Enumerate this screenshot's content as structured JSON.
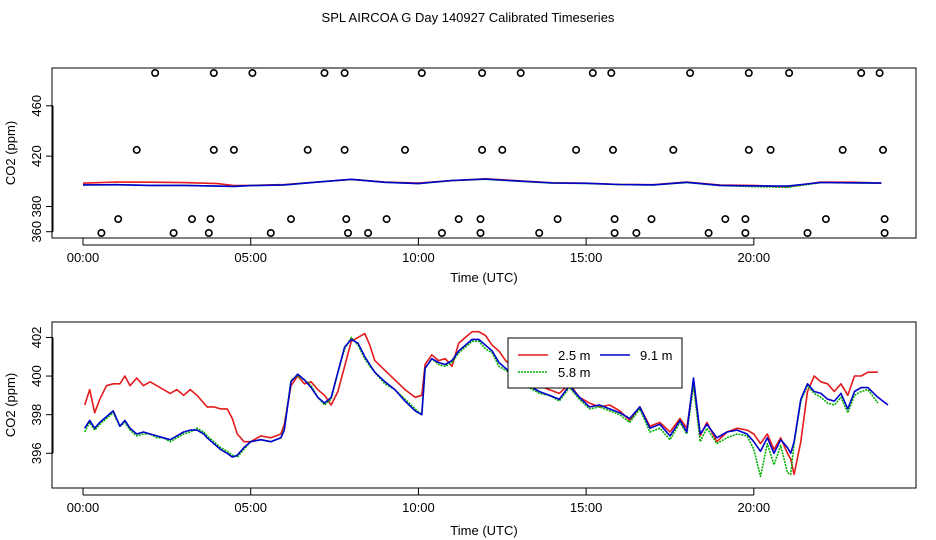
{
  "title": "SPL AIRCOA G  Day 140927  Calibrated Timeseries",
  "colors": {
    "s1": "#e41a1c",
    "s2": "#00b000",
    "s3": "#0000cc",
    "axis": "#000000"
  },
  "chart_data": [
    {
      "type": "scatter+line",
      "xlabel": "Time (UTC)",
      "ylabel": "CO2 (ppm)",
      "xlim": [
        0,
        24
      ],
      "ylim": [
        355,
        490
      ],
      "xticks": [
        0,
        5,
        10,
        15,
        20
      ],
      "xtick_labels": [
        "00:00",
        "05:00",
        "10:00",
        "15:00",
        "20:00"
      ],
      "yticks": [
        360,
        380,
        420,
        460
      ],
      "ytick_labels": [
        "360",
        "380",
        "420",
        "460"
      ],
      "markers": {
        "symbol": "circle",
        "x": [
          2.15,
          3.9,
          5.05,
          7.2,
          7.8,
          10.1,
          11.9,
          13.05,
          15.2,
          15.75,
          18.1,
          19.85,
          21.05,
          23.2,
          23.75,
          1.6,
          3.9,
          4.5,
          6.7,
          7.8,
          9.6,
          11.9,
          12.5,
          14.7,
          15.8,
          17.6,
          19.85,
          20.5,
          22.65,
          23.85,
          1.05,
          3.25,
          3.8,
          6.2,
          7.85,
          9.05,
          11.2,
          11.85,
          14.15,
          15.85,
          16.95,
          19.15,
          19.75,
          22.15,
          23.9,
          0.55,
          2.7,
          3.75,
          5.6,
          7.9,
          8.5,
          10.7,
          11.85,
          13.6,
          15.85,
          16.5,
          18.65,
          19.75,
          21.6,
          23.9
        ],
        "y": [
          486,
          486,
          486,
          486,
          486,
          486,
          486,
          486,
          486,
          486,
          486,
          486,
          486,
          486,
          486,
          425,
          425,
          425,
          425,
          425,
          425,
          425,
          425,
          425,
          425,
          425,
          425,
          425,
          425,
          425,
          370,
          370,
          370,
          370,
          370,
          370,
          370,
          370,
          370,
          370,
          370,
          370,
          370,
          370,
          370,
          359,
          359,
          359,
          359,
          359,
          359,
          359,
          359,
          359,
          359,
          359,
          359,
          359,
          359,
          359
        ]
      },
      "series": [
        {
          "name": "2.5 m",
          "x": [
            0,
            1,
            2,
            3,
            4,
            4.5,
            5,
            6,
            7,
            8,
            9,
            10,
            11,
            12,
            13,
            14,
            15,
            16,
            17,
            18,
            19,
            20,
            21,
            22,
            23,
            23.8
          ],
          "values": [
            398.5,
            399.5,
            399.3,
            399,
            398.2,
            396.7,
            396.8,
            397.5,
            399.5,
            401.5,
            399.5,
            398.6,
            400.6,
            402,
            400.4,
            398.8,
            398.5,
            397.5,
            397.3,
            399.5,
            397,
            396.8,
            395.6,
            399.5,
            399.2,
            398.6
          ]
        },
        {
          "name": "5.8 m",
          "x": [
            0,
            1,
            2,
            3,
            4,
            4.5,
            5,
            6,
            7,
            8,
            9,
            10,
            11,
            12,
            13,
            14,
            15,
            16,
            17,
            18,
            19,
            20,
            21,
            22,
            23,
            23.8
          ],
          "values": [
            397.2,
            397.3,
            396.8,
            396.8,
            396.2,
            396,
            396.6,
            397.2,
            399.5,
            401.5,
            399.2,
            398.2,
            400.6,
            401.6,
            400,
            398.6,
            398.3,
            397.4,
            397.1,
            399,
            396.6,
            395.8,
            395.3,
            399,
            398.7,
            398.5
          ]
        },
        {
          "name": "9.1 m",
          "x": [
            0,
            1,
            2,
            3,
            4,
            4.5,
            5,
            6,
            7,
            8,
            9,
            10,
            11,
            12,
            13,
            14,
            15,
            16,
            17,
            18,
            19,
            20,
            21,
            22,
            23,
            23.8
          ],
          "values": [
            397.2,
            397.3,
            396.8,
            396.8,
            396.2,
            396,
            396.6,
            397.2,
            399.4,
            401.6,
            399.2,
            398.2,
            400.7,
            401.8,
            400.2,
            398.7,
            398.4,
            397.5,
            397.2,
            399.2,
            396.8,
            396.4,
            396.2,
            399.1,
            398.8,
            398.6
          ]
        }
      ]
    },
    {
      "type": "line",
      "xlabel": "Time (UTC)",
      "ylabel": "CO2 (ppm)",
      "xlim": [
        0,
        24
      ],
      "ylim": [
        394.2,
        402.8
      ],
      "xticks": [
        0,
        5,
        10,
        15,
        20
      ],
      "xtick_labels": [
        "00:00",
        "05:00",
        "10:00",
        "15:00",
        "20:00"
      ],
      "yticks": [
        396,
        398,
        400,
        402
      ],
      "ytick_labels": [
        "396",
        "398",
        "400",
        "402"
      ],
      "legend": {
        "position": "top-center",
        "labels": [
          "2.5 m",
          "5.8 m",
          "9.1 m"
        ]
      },
      "series": [
        {
          "name": "2.5 m",
          "x": [
            0.05,
            0.2,
            0.35,
            0.5,
            0.7,
            0.9,
            1.1,
            1.25,
            1.4,
            1.6,
            1.8,
            2.0,
            2.2,
            2.4,
            2.6,
            2.8,
            3.0,
            3.2,
            3.4,
            3.6,
            3.7,
            3.9,
            4.1,
            4.3,
            4.45,
            4.6,
            4.8,
            5.0,
            5.3,
            5.6,
            5.9,
            6.0,
            6.2,
            6.4,
            6.6,
            6.8,
            7.0,
            7.2,
            7.4,
            7.6,
            7.8,
            8.0,
            8.2,
            8.4,
            8.55,
            8.7,
            9.0,
            9.3,
            9.6,
            9.9,
            10.1,
            10.2,
            10.4,
            10.6,
            10.8,
            11.0,
            11.2,
            11.4,
            11.6,
            11.8,
            12.0,
            12.2,
            12.4,
            12.6,
            12.8,
            13.0,
            13.3,
            13.6,
            13.9,
            14.2,
            14.5,
            14.8,
            15.1,
            15.4,
            15.7,
            16.0,
            16.3,
            16.6,
            16.9,
            17.2,
            17.5,
            17.8,
            18.0,
            18.2,
            18.4,
            18.6,
            18.9,
            19.2,
            19.5,
            19.8,
            20.0,
            20.2,
            20.4,
            20.6,
            20.8,
            21.0,
            21.1,
            21.2,
            21.4,
            21.6,
            21.8,
            22.0,
            22.2,
            22.4,
            22.6,
            22.8,
            23.0,
            23.2,
            23.4,
            23.7
          ],
          "values": [
            398.5,
            399.3,
            398.1,
            398.8,
            399.5,
            399.6,
            399.6,
            400.0,
            399.5,
            399.9,
            399.5,
            399.7,
            399.5,
            399.3,
            399.1,
            399.3,
            399.0,
            399.3,
            399.0,
            398.6,
            398.4,
            398.4,
            398.3,
            398.3,
            397.8,
            397.0,
            396.6,
            396.6,
            396.9,
            396.8,
            397.0,
            397.5,
            399.5,
            400.0,
            399.6,
            399.7,
            399.3,
            399.0,
            398.5,
            399.2,
            400.5,
            401.8,
            402.0,
            402.2,
            401.6,
            400.8,
            400.3,
            399.8,
            399.3,
            398.9,
            399.0,
            400.6,
            401.1,
            400.8,
            400.9,
            400.5,
            401.7,
            402.0,
            402.3,
            402.3,
            402.1,
            401.6,
            401.3,
            400.8,
            400.5,
            400.3,
            399.9,
            399.5,
            399.3,
            399.1,
            399.6,
            398.9,
            398.6,
            398.4,
            398.5,
            398.2,
            397.7,
            398.4,
            397.4,
            397.6,
            397.1,
            397.8,
            397.3,
            399.7,
            396.9,
            397.6,
            396.6,
            397.1,
            397.3,
            397.2,
            397.0,
            396.5,
            397.0,
            396.2,
            396.8,
            396.0,
            395.7,
            394.9,
            396.6,
            399.2,
            400.0,
            399.7,
            399.6,
            399.2,
            399.6,
            399.0,
            400.0,
            400.0,
            400.2,
            400.2
          ]
        },
        {
          "name": "5.8 m",
          "x": [
            0.05,
            0.2,
            0.35,
            0.5,
            0.7,
            0.9,
            1.1,
            1.25,
            1.4,
            1.6,
            1.8,
            2.0,
            2.2,
            2.4,
            2.6,
            2.8,
            3.0,
            3.2,
            3.4,
            3.6,
            3.7,
            3.9,
            4.1,
            4.3,
            4.45,
            4.6,
            4.8,
            5.0,
            5.3,
            5.6,
            5.9,
            6.0,
            6.2,
            6.4,
            6.6,
            6.8,
            7.0,
            7.2,
            7.4,
            7.6,
            7.8,
            8.0,
            8.2,
            8.4,
            8.55,
            8.7,
            9.0,
            9.3,
            9.6,
            9.9,
            10.1,
            10.2,
            10.4,
            10.6,
            10.8,
            11.0,
            11.2,
            11.4,
            11.6,
            11.8,
            12.0,
            12.2,
            12.4,
            12.6,
            12.8,
            13.0,
            13.3,
            13.6,
            13.9,
            14.2,
            14.5,
            14.8,
            15.1,
            15.4,
            15.7,
            16.0,
            16.3,
            16.6,
            16.9,
            17.2,
            17.5,
            17.8,
            18.0,
            18.2,
            18.4,
            18.6,
            18.9,
            19.2,
            19.5,
            19.8,
            20.0,
            20.2,
            20.4,
            20.6,
            20.8,
            21.0,
            21.1,
            21.2,
            21.4,
            21.6,
            21.8,
            22.0,
            22.2,
            22.4,
            22.6,
            22.8,
            23.0,
            23.2,
            23.4,
            23.7
          ],
          "values": [
            397.1,
            397.6,
            397.2,
            397.5,
            397.8,
            398.1,
            397.4,
            397.6,
            397.2,
            396.9,
            397.0,
            397.0,
            396.8,
            396.8,
            396.6,
            396.8,
            397.0,
            397.1,
            397.3,
            397.1,
            396.9,
            396.6,
            396.3,
            396.1,
            395.9,
            395.8,
            396.2,
            396.6,
            396.7,
            396.6,
            396.8,
            397.3,
            399.8,
            400.0,
            399.8,
            399.5,
            398.9,
            398.5,
            398.8,
            400.2,
            401.4,
            402.0,
            401.6,
            400.9,
            400.5,
            400.2,
            399.6,
            399.3,
            398.8,
            398.3,
            398.0,
            400.4,
            400.9,
            400.6,
            400.5,
            400.7,
            401.2,
            401.5,
            401.8,
            401.8,
            401.4,
            401.2,
            400.5,
            400.3,
            400.1,
            399.9,
            399.4,
            399.1,
            399.0,
            398.7,
            399.4,
            398.8,
            398.3,
            398.4,
            398.2,
            398.0,
            397.6,
            398.3,
            397.1,
            397.3,
            396.7,
            397.6,
            397.0,
            399.5,
            396.6,
            397.3,
            396.5,
            396.8,
            397.0,
            396.9,
            396.2,
            394.8,
            396.5,
            395.4,
            396.4,
            395.0,
            394.9,
            396.5,
            398.7,
            399.5,
            399.1,
            398.9,
            398.6,
            398.5,
            398.9,
            398.1,
            399.0,
            399.2,
            399.3,
            398.6
          ]
        },
        {
          "name": "9.1 m",
          "x": [
            0.05,
            0.2,
            0.35,
            0.5,
            0.7,
            0.9,
            1.1,
            1.25,
            1.4,
            1.6,
            1.8,
            2.0,
            2.2,
            2.4,
            2.6,
            2.8,
            3.0,
            3.2,
            3.4,
            3.6,
            3.7,
            3.9,
            4.1,
            4.3,
            4.45,
            4.6,
            4.8,
            5.0,
            5.3,
            5.6,
            5.9,
            6.0,
            6.2,
            6.4,
            6.6,
            6.8,
            7.0,
            7.2,
            7.4,
            7.6,
            7.8,
            8.0,
            8.2,
            8.4,
            8.55,
            8.7,
            9.0,
            9.3,
            9.6,
            9.9,
            10.1,
            10.2,
            10.4,
            10.6,
            10.8,
            11.0,
            11.2,
            11.4,
            11.6,
            11.8,
            12.0,
            12.2,
            12.4,
            12.6,
            12.8,
            13.0,
            13.3,
            13.6,
            13.9,
            14.2,
            14.5,
            14.8,
            15.1,
            15.4,
            15.7,
            16.0,
            16.3,
            16.6,
            16.9,
            17.2,
            17.5,
            17.8,
            18.0,
            18.2,
            18.4,
            18.6,
            18.9,
            19.2,
            19.5,
            19.8,
            20.0,
            20.2,
            20.4,
            20.6,
            20.8,
            21.0,
            21.1,
            21.2,
            21.4,
            21.6,
            21.8,
            22.0,
            22.2,
            22.4,
            22.6,
            22.8,
            23.0,
            23.2,
            23.4,
            23.7,
            24.0
          ],
          "values": [
            397.3,
            397.7,
            397.3,
            397.6,
            397.9,
            398.2,
            397.4,
            397.7,
            397.3,
            397.0,
            397.1,
            397.0,
            396.9,
            396.8,
            396.7,
            396.9,
            397.1,
            397.2,
            397.2,
            397.0,
            396.8,
            396.5,
            396.2,
            396.0,
            395.8,
            395.9,
            396.3,
            396.6,
            396.7,
            396.6,
            396.8,
            397.2,
            399.7,
            400.1,
            399.8,
            399.4,
            398.9,
            398.6,
            398.9,
            400.2,
            401.5,
            401.9,
            401.7,
            401.0,
            400.6,
            400.2,
            399.7,
            399.3,
            398.7,
            398.2,
            398.0,
            400.4,
            400.9,
            400.7,
            400.6,
            400.8,
            401.3,
            401.6,
            401.9,
            401.9,
            401.6,
            401.3,
            400.7,
            400.4,
            400.1,
            400.0,
            399.5,
            399.2,
            399.0,
            398.8,
            399.5,
            398.9,
            398.4,
            398.5,
            398.3,
            398.1,
            397.8,
            398.4,
            397.3,
            397.5,
            396.9,
            397.7,
            397.1,
            399.9,
            397.0,
            397.5,
            396.8,
            397.1,
            397.2,
            397.0,
            396.6,
            396.1,
            396.8,
            396.0,
            396.7,
            396.3,
            396.0,
            396.6,
            398.8,
            399.6,
            399.2,
            399.1,
            398.8,
            398.7,
            399.1,
            398.3,
            399.2,
            399.4,
            399.4,
            398.9,
            398.5
          ]
        }
      ]
    }
  ]
}
